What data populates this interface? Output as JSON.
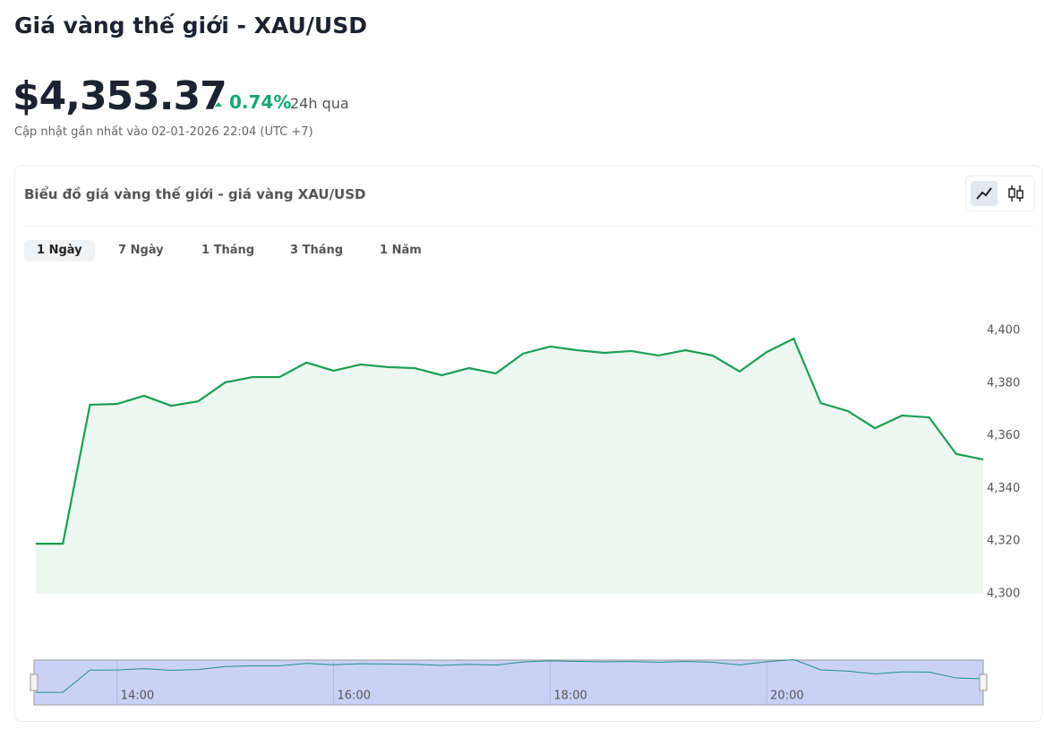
{
  "header": {
    "title": "Giá vàng thế giới - XAU/USD",
    "price": "$4,353.37",
    "change": "0.74%",
    "period": "24h qua",
    "updated": "Cập nhật gần nhất vào 02-01-2026 22:04 (UTC +7)"
  },
  "card": {
    "title": "Biểu đồ giá vàng thế giới - giá vàng XAU/USD",
    "tabs": [
      "1 Ngày",
      "7 Ngày",
      "1 Tháng",
      "3 Tháng",
      "1 Năm"
    ]
  },
  "chart_data": {
    "type": "line",
    "color": "#1a9e52",
    "x": [
      13.25,
      13.5,
      13.75,
      14,
      14.25,
      14.5,
      14.75,
      15,
      15.25,
      15.5,
      15.75,
      16,
      16.25,
      16.5,
      16.75,
      17,
      17.25,
      17.5,
      17.75,
      18,
      18.25,
      18.5,
      18.75,
      19,
      19.25,
      19.5,
      19.75,
      20,
      20.25,
      20.5,
      20.75,
      21,
      21.25,
      21.5,
      21.75,
      22
    ],
    "values": [
      4319.0,
      4319.0,
      4371.8,
      4372.1,
      4375.2,
      4371.4,
      4373.1,
      4380.3,
      4382.3,
      4382.3,
      4387.8,
      4384.7,
      4387.1,
      4386.1,
      4385.7,
      4383.0,
      4385.7,
      4383.7,
      4391.2,
      4393.9,
      4392.5,
      4391.5,
      4392.2,
      4390.5,
      4392.5,
      4390.5,
      4384.4,
      4391.8,
      4396.9,
      4372.4,
      4369.4,
      4362.9,
      4367.7,
      4367.0,
      4353.1,
      4351.0
    ],
    "xlim": [
      13.25,
      22
    ],
    "xticks": [
      {
        "value": 14,
        "label": "14:00"
      },
      {
        "value": 16,
        "label": "16:00"
      },
      {
        "value": 18,
        "label": "18:00"
      },
      {
        "value": 20,
        "label": "20:00"
      }
    ],
    "ylim": [
      4300,
      4400
    ],
    "yticks": [
      {
        "value": 4300,
        "label": "4,300"
      },
      {
        "value": 4320,
        "label": "4,320"
      },
      {
        "value": 4340,
        "label": "4,340"
      },
      {
        "value": 4360,
        "label": "4,360"
      },
      {
        "value": 4380,
        "label": "4,380"
      },
      {
        "value": 4400,
        "label": "4,400"
      }
    ]
  }
}
